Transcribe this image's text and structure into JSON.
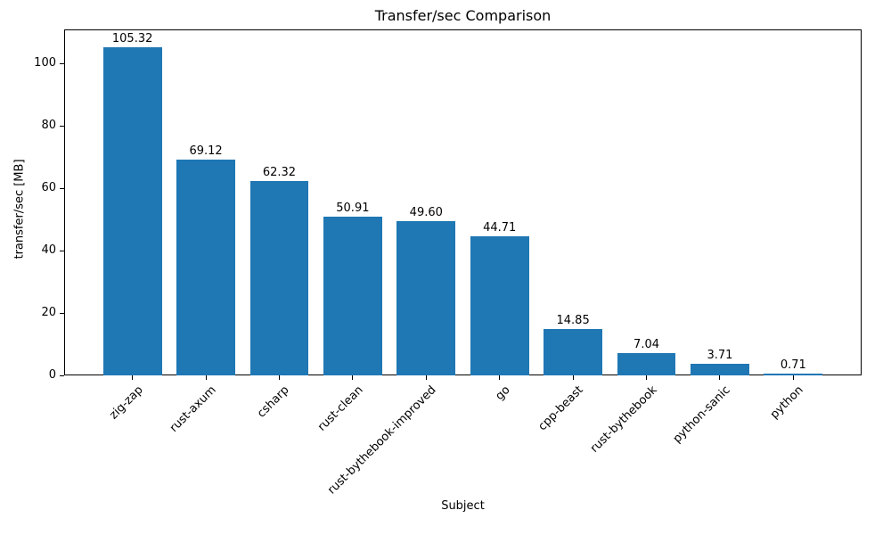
{
  "chart_data": {
    "type": "bar",
    "title": "Transfer/sec Comparison",
    "xlabel": "Subject",
    "ylabel": "transfer/sec [MB]",
    "categories": [
      "zig-zap",
      "rust-axum",
      "csharp",
      "rust-clean",
      "rust-bythebook-improved",
      "go",
      "cpp-beast",
      "rust-bythebook",
      "python-sanic",
      "python"
    ],
    "values": [
      105.32,
      69.12,
      62.32,
      50.91,
      49.6,
      44.71,
      14.85,
      7.04,
      3.71,
      0.71
    ],
    "value_labels": [
      "105.32",
      "69.12",
      "62.32",
      "50.91",
      "49.60",
      "44.71",
      "14.85",
      "7.04",
      "3.71",
      "0.71"
    ],
    "yticks": [
      0,
      20,
      40,
      60,
      80,
      100
    ],
    "ytick_labels": [
      "0",
      "20",
      "40",
      "60",
      "80",
      "100"
    ],
    "ylim": [
      0,
      111
    ],
    "bar_color": "#1f77b4",
    "grid": false,
    "legend_position": "none"
  }
}
